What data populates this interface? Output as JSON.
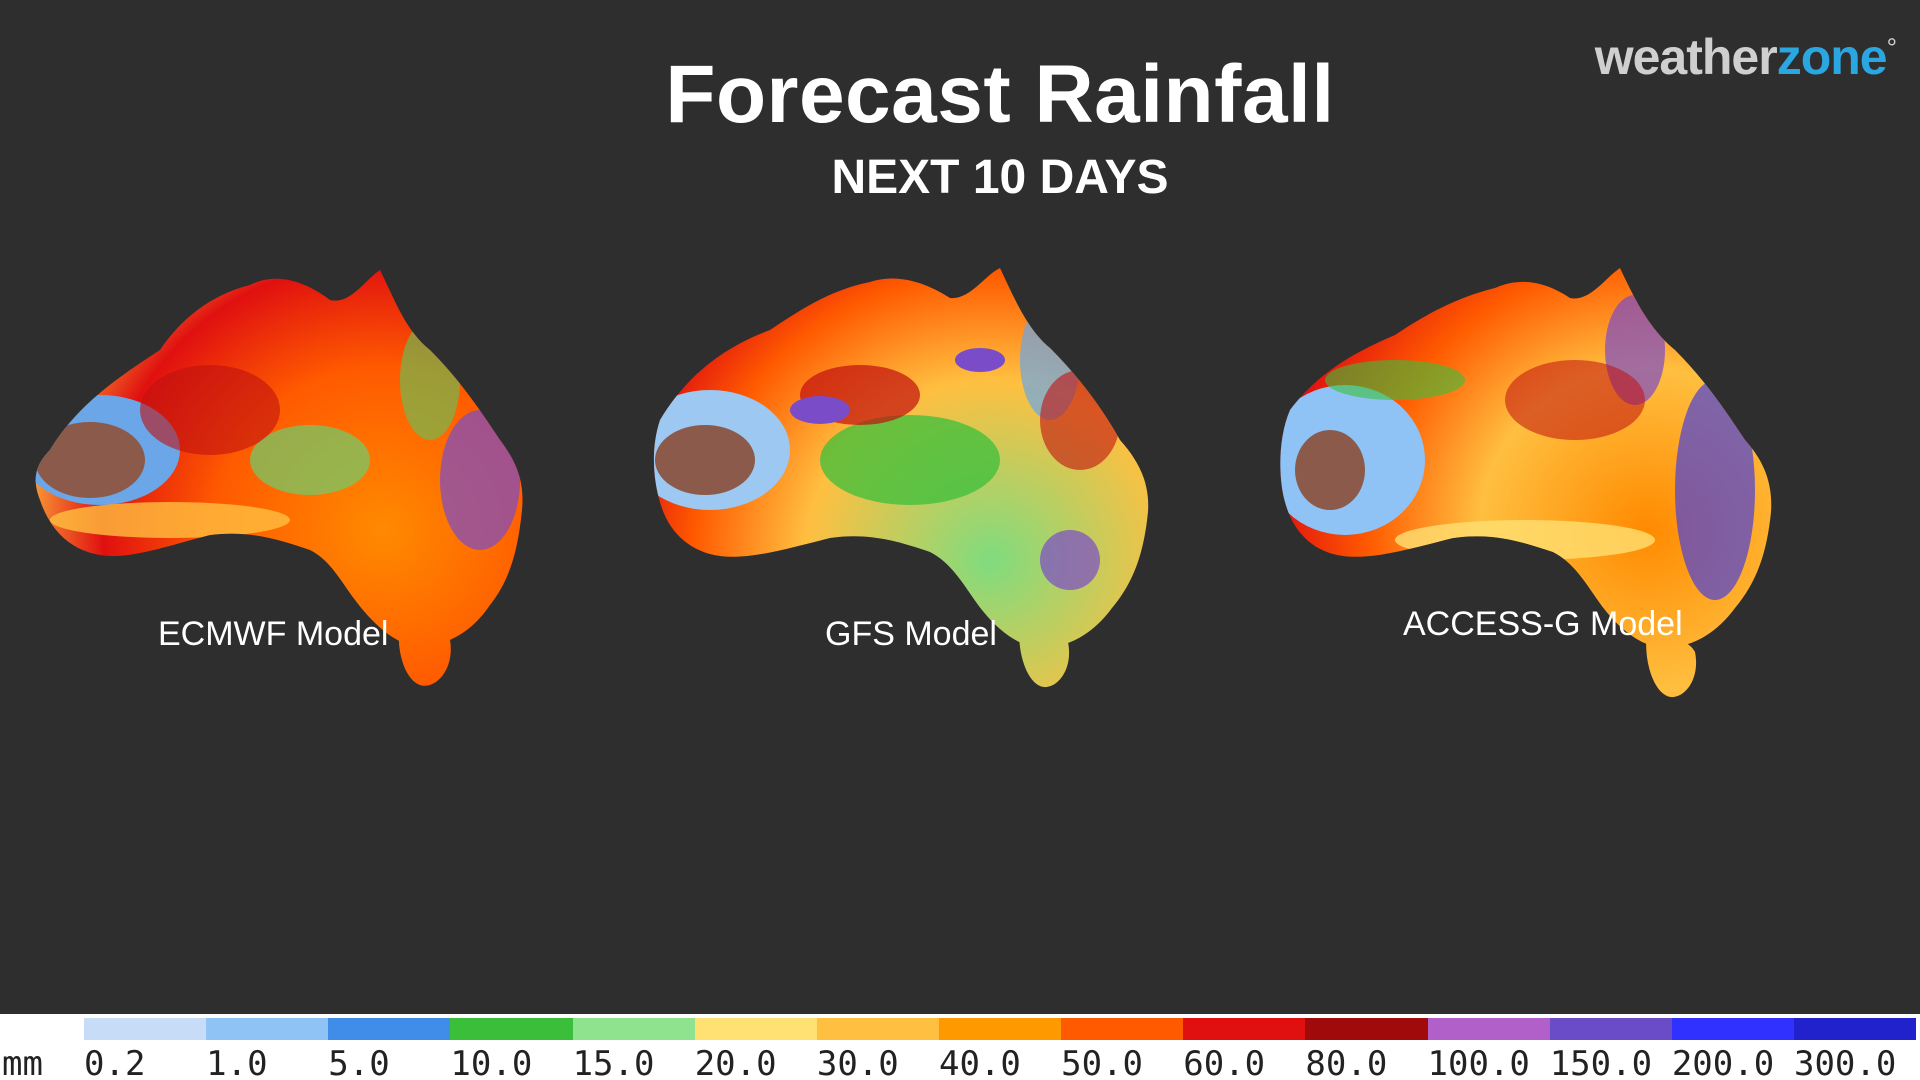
{
  "header": {
    "title": "Forecast Rainfall",
    "subtitle": "NEXT 10 DAYS"
  },
  "logo": {
    "part1": "weather",
    "part2": "zone",
    "mark": "°"
  },
  "maps": [
    {
      "label": "ECMWF Model",
      "style": "wet-orange-red"
    },
    {
      "label": "GFS Model",
      "style": "mixed-green-red"
    },
    {
      "label": "ACCESS-G Model",
      "style": "wet-orange-blue"
    }
  ],
  "legend": {
    "unit": "mm",
    "ticks": [
      "0.2",
      "1.0",
      "5.0",
      "10.0",
      "15.0",
      "20.0",
      "30.0",
      "40.0",
      "50.0",
      "60.0",
      "80.0",
      "100.0",
      "150.0",
      "200.0",
      "300.0"
    ],
    "colors": [
      "#c6dcf7",
      "#8fc3f5",
      "#3f8de8",
      "#3bbf3b",
      "#8fe38f",
      "#ffe072",
      "#ffbf40",
      "#ff9900",
      "#ff5a00",
      "#e01010",
      "#a00a0a",
      "#b060c8",
      "#6a4cc8",
      "#3030ff",
      "#2222cc"
    ]
  }
}
